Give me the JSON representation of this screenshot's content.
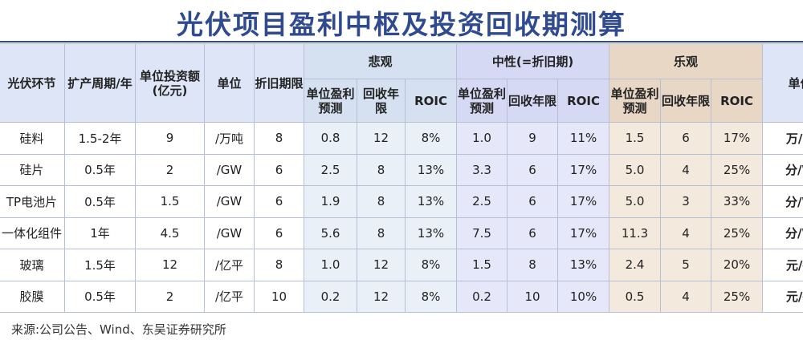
{
  "title": "光伏项目盈利中枢及投资回收期测算",
  "source": "来源:公司公告、Wind、东吴证券研究所",
  "chart_data": {
    "type": "table",
    "groups": {
      "bear": "悲观",
      "neutral": "中性(=折旧期)",
      "bull": "乐观"
    },
    "columns": {
      "segment": "光伏环节",
      "expansion_period": "扩产周期/年",
      "unit_investment": "单位投资额(亿元)",
      "unit": "单位",
      "depreciation": "折旧期限",
      "profit": "单位盈利预测",
      "payback": "回收年限",
      "roic": "ROIC",
      "profit_unit": "单位"
    },
    "rows": [
      {
        "segment": "硅料",
        "expansion_period": "1.5-2年",
        "unit_investment": "9",
        "unit": "/万吨",
        "depreciation": "8",
        "bear": [
          "0.8",
          "12",
          "8%"
        ],
        "neutral": [
          "1.0",
          "9",
          "11%"
        ],
        "bull": [
          "1.5",
          "6",
          "17%"
        ],
        "profit_unit": "万/吨"
      },
      {
        "segment": "硅片",
        "expansion_period": "0.5年",
        "unit_investment": "2",
        "unit": "/GW",
        "depreciation": "6",
        "bear": [
          "2.5",
          "8",
          "13%"
        ],
        "neutral": [
          "3.3",
          "6",
          "17%"
        ],
        "bull": [
          "5.0",
          "4",
          "25%"
        ],
        "profit_unit": "分/W"
      },
      {
        "segment": "TP电池片",
        "expansion_period": "0.5年",
        "unit_investment": "1.5",
        "unit": "/GW",
        "depreciation": "6",
        "bear": [
          "1.9",
          "8",
          "13%"
        ],
        "neutral": [
          "2.5",
          "6",
          "17%"
        ],
        "bull": [
          "5.0",
          "3",
          "33%"
        ],
        "profit_unit": "分/W"
      },
      {
        "segment": "一体化组件",
        "expansion_period": "1年",
        "unit_investment": "4.5",
        "unit": "/GW",
        "depreciation": "6",
        "bear": [
          "5.6",
          "8",
          "13%"
        ],
        "neutral": [
          "7.5",
          "6",
          "17%"
        ],
        "bull": [
          "11.3",
          "4",
          "25%"
        ],
        "profit_unit": "分/W"
      },
      {
        "segment": "玻璃",
        "expansion_period": "1.5年",
        "unit_investment": "12",
        "unit": "/亿平",
        "depreciation": "8",
        "bear": [
          "1.0",
          "12",
          "8%"
        ],
        "neutral": [
          "1.5",
          "8",
          "13%"
        ],
        "bull": [
          "2.4",
          "5",
          "20%"
        ],
        "profit_unit": "元/平"
      },
      {
        "segment": "胶膜",
        "expansion_period": "0.5年",
        "unit_investment": "2",
        "unit": "/亿平",
        "depreciation": "10",
        "bear": [
          "0.2",
          "12",
          "8%"
        ],
        "neutral": [
          "0.2",
          "10",
          "10%"
        ],
        "bull": [
          "0.5",
          "4",
          "25%"
        ],
        "profit_unit": "元/平"
      }
    ]
  }
}
